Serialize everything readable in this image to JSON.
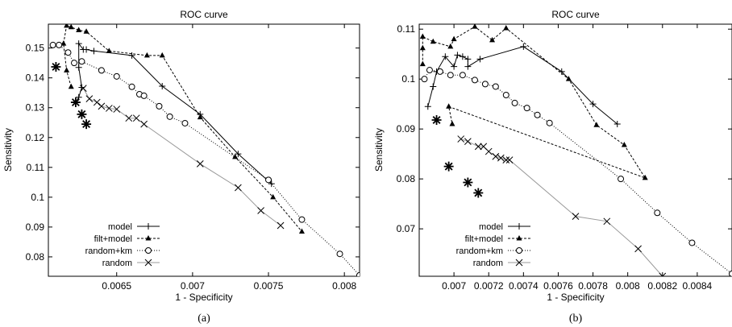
{
  "chart_data": [
    {
      "type": "line",
      "title": "ROC curve",
      "xlabel": "1 - Specificity",
      "ylabel": "Sensitivity",
      "caption": "(a)",
      "xlim": [
        0.00605,
        0.0081
      ],
      "ylim": [
        0.0735,
        0.158
      ],
      "xticks": [
        0.0065,
        0.007,
        0.0075,
        0.008
      ],
      "xtick_labels": [
        "0.0065",
        "0.007",
        "0.0075",
        "0.008"
      ],
      "yticks": [
        0.08,
        0.09,
        0.1,
        0.11,
        0.12,
        0.13,
        0.14,
        0.15
      ],
      "ytick_labels": [
        "0.08",
        "0.09",
        "0.1",
        "0.11",
        "0.12",
        "0.13",
        "0.14",
        "0.15"
      ],
      "legend": "bottom-left",
      "stars": [
        [
          0.0061,
          0.1437
        ],
        [
          0.00623,
          0.1318
        ],
        [
          0.00627,
          0.1278
        ],
        [
          0.0063,
          0.1245
        ]
      ],
      "series": [
        {
          "name": "model",
          "marker": "plus",
          "dash": "solid",
          "color": "#000000",
          "points": [
            [
              0.00623,
              0.1318
            ],
            [
              0.00625,
              0.1335
            ],
            [
              0.00627,
              0.1368
            ],
            [
              0.00625,
              0.1435
            ],
            [
              0.00625,
              0.1515
            ],
            [
              0.00628,
              0.1495
            ],
            [
              0.0063,
              0.1495
            ],
            [
              0.00635,
              0.149
            ],
            [
              0.0066,
              0.1475
            ],
            [
              0.0068,
              0.1372
            ],
            [
              0.00705,
              0.1278
            ],
            [
              0.0073,
              0.1145
            ],
            [
              0.00752,
              0.1045
            ]
          ]
        },
        {
          "name": "filt+model",
          "marker": "triangle",
          "dash": "dashed",
          "color": "#000000",
          "points": [
            [
              0.0062,
              0.137
            ],
            [
              0.00617,
              0.1425
            ],
            [
              0.00615,
              0.1515
            ],
            [
              0.00617,
              0.1575
            ],
            [
              0.0062,
              0.157
            ],
            [
              0.00625,
              0.156
            ],
            [
              0.0063,
              0.1555
            ],
            [
              0.00645,
              0.149
            ],
            [
              0.0067,
              0.1475
            ],
            [
              0.0068,
              0.1475
            ],
            [
              0.00705,
              0.1268
            ],
            [
              0.00728,
              0.1135
            ],
            [
              0.00753,
              0.1
            ],
            [
              0.00772,
              0.0885
            ]
          ]
        },
        {
          "name": "random+km",
          "marker": "circle",
          "dash": "dotted",
          "color": "#000000",
          "points": [
            [
              0.00608,
              0.151
            ],
            [
              0.00612,
              0.151
            ],
            [
              0.00618,
              0.1485
            ],
            [
              0.00622,
              0.145
            ],
            [
              0.00627,
              0.1455
            ],
            [
              0.0064,
              0.1425
            ],
            [
              0.0065,
              0.1405
            ],
            [
              0.0066,
              0.137
            ],
            [
              0.00665,
              0.1345
            ],
            [
              0.00668,
              0.134
            ],
            [
              0.00678,
              0.1305
            ],
            [
              0.00685,
              0.127
            ],
            [
              0.00695,
              0.1248
            ],
            [
              0.0075,
              0.1058
            ],
            [
              0.00772,
              0.0925
            ],
            [
              0.00797,
              0.081
            ],
            [
              0.0081,
              0.0738
            ]
          ]
        },
        {
          "name": "random",
          "marker": "x",
          "dash": "solid",
          "color": "#999999",
          "points": [
            [
              0.00628,
              0.1365
            ],
            [
              0.00632,
              0.133
            ],
            [
              0.00637,
              0.1318
            ],
            [
              0.0064,
              0.1305
            ],
            [
              0.00645,
              0.1298
            ],
            [
              0.0065,
              0.1295
            ],
            [
              0.00658,
              0.1265
            ],
            [
              0.00663,
              0.1265
            ],
            [
              0.00668,
              0.1245
            ],
            [
              0.00705,
              0.1112
            ],
            [
              0.0073,
              0.1032
            ],
            [
              0.00745,
              0.0955
            ],
            [
              0.00758,
              0.0905
            ]
          ]
        }
      ]
    },
    {
      "type": "line",
      "title": "ROC curve",
      "xlabel": "1 - Specificity",
      "ylabel": "Sensitivity",
      "caption": "(b)",
      "xlim": [
        0.0068,
        0.0086
      ],
      "ylim": [
        0.0605,
        0.111
      ],
      "xticks": [
        0.007,
        0.0072,
        0.0074,
        0.0076,
        0.0078,
        0.008,
        0.0082,
        0.0084
      ],
      "xtick_labels": [
        "0.007",
        "0.0072",
        "0.0074",
        "0.0076",
        "0.0078",
        "0.008",
        "0.0082",
        "0.0084"
      ],
      "yticks": [
        0.07,
        0.08,
        0.09,
        0.1,
        0.11
      ],
      "ytick_labels": [
        "0.07",
        "0.08",
        "0.09",
        "0.1",
        "0.11"
      ],
      "legend": "bottom-left",
      "stars": [
        [
          0.0069,
          0.0918
        ],
        [
          0.00697,
          0.0825
        ],
        [
          0.00708,
          0.0793
        ],
        [
          0.00714,
          0.0772
        ]
      ],
      "series": [
        {
          "name": "model",
          "marker": "plus",
          "dash": "solid",
          "color": "#000000",
          "points": [
            [
              0.00685,
              0.0945
            ],
            [
              0.00688,
              0.0985
            ],
            [
              0.0069,
              0.1015
            ],
            [
              0.00695,
              0.1045
            ],
            [
              0.007,
              0.1025
            ],
            [
              0.00702,
              0.1048
            ],
            [
              0.00705,
              0.1045
            ],
            [
              0.00708,
              0.104
            ],
            [
              0.00708,
              0.1025
            ],
            [
              0.00715,
              0.104
            ],
            [
              0.0074,
              0.1065
            ],
            [
              0.00762,
              0.1015
            ],
            [
              0.0078,
              0.095
            ],
            [
              0.00794,
              0.091
            ]
          ]
        },
        {
          "name": "filt+model",
          "marker": "triangle",
          "dash": "dashed",
          "color": "#000000",
          "points": [
            [
              0.00682,
              0.103
            ],
            [
              0.00682,
              0.1062
            ],
            [
              0.00682,
              0.1085
            ],
            [
              0.00688,
              0.1075
            ],
            [
              0.00698,
              0.1065
            ],
            [
              0.007,
              0.108
            ],
            [
              0.00712,
              0.1105
            ],
            [
              0.00722,
              0.1078
            ],
            [
              0.0073,
              0.1102
            ],
            [
              0.00766,
              0.1
            ],
            [
              0.00782,
              0.0908
            ],
            [
              0.00798,
              0.0868
            ],
            [
              0.0081,
              0.0802
            ],
            [
              0.00697,
              0.0945
            ],
            [
              0.00699,
              0.091
            ]
          ]
        },
        {
          "name": "random+km",
          "marker": "circle",
          "dash": "dotted",
          "color": "#000000",
          "points": [
            [
              0.00683,
              0.1
            ],
            [
              0.00686,
              0.1018
            ],
            [
              0.00692,
              0.1015
            ],
            [
              0.00698,
              0.1008
            ],
            [
              0.00705,
              0.1008
            ],
            [
              0.00712,
              0.0998
            ],
            [
              0.00718,
              0.099
            ],
            [
              0.00724,
              0.0985
            ],
            [
              0.0073,
              0.0968
            ],
            [
              0.00735,
              0.0952
            ],
            [
              0.00742,
              0.0942
            ],
            [
              0.00748,
              0.0928
            ],
            [
              0.00755,
              0.0912
            ],
            [
              0.00796,
              0.08
            ],
            [
              0.00817,
              0.0732
            ],
            [
              0.00837,
              0.0672
            ],
            [
              0.0086,
              0.061
            ]
          ]
        },
        {
          "name": "random",
          "marker": "x",
          "dash": "solid",
          "color": "#999999",
          "points": [
            [
              0.00704,
              0.088
            ],
            [
              0.00708,
              0.0875
            ],
            [
              0.00714,
              0.0865
            ],
            [
              0.00717,
              0.0865
            ],
            [
              0.0072,
              0.0855
            ],
            [
              0.00724,
              0.0845
            ],
            [
              0.00727,
              0.0842
            ],
            [
              0.0073,
              0.0838
            ],
            [
              0.00732,
              0.0838
            ],
            [
              0.0077,
              0.0725
            ],
            [
              0.00788,
              0.0715
            ],
            [
              0.00806,
              0.066
            ],
            [
              0.0082,
              0.0605
            ]
          ]
        }
      ]
    }
  ]
}
